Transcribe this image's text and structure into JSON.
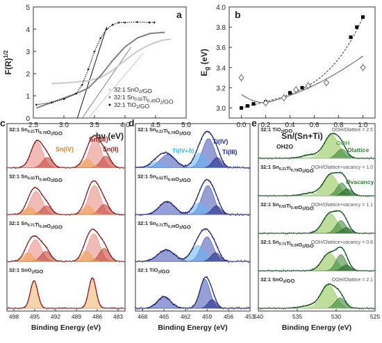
{
  "chart_data": [
    {
      "panel": "a",
      "type": "line",
      "xlabel": "hν (eV)",
      "ylabel": "F(R)1/2",
      "xlim": [
        2.5,
        5.0
      ],
      "ylim": [
        0,
        5
      ],
      "xticks": [
        "2.5",
        "3.0",
        "3.5",
        "4.0",
        "4.5",
        "5.0"
      ],
      "yticks": [
        "0",
        "1",
        "2",
        "3",
        "4",
        "5"
      ],
      "legend": [
        "32:1 SnO2/GO",
        "32:1 Sn0.55Ti0.45O2/GO",
        "32:1 TiO2/GO"
      ],
      "series": [
        {
          "name": "32:1 SnO2/GO",
          "color": "#c8c8c8",
          "x": [
            2.8,
            3.0,
            3.2,
            3.4,
            3.6,
            3.8,
            4.0,
            4.2,
            4.4,
            4.6,
            4.75
          ],
          "y": [
            1.55,
            1.58,
            1.62,
            1.68,
            1.82,
            2.15,
            2.6,
            3.0,
            3.3,
            3.5,
            3.55
          ]
        },
        {
          "name": "32:1 Sn0.55Ti0.45O2/GO",
          "color": "#808080",
          "x": [
            2.55,
            2.8,
            3.0,
            3.2,
            3.4,
            3.6,
            3.8,
            4.0,
            4.2,
            4.4,
            4.6,
            4.65
          ],
          "y": [
            0.45,
            0.7,
            0.9,
            1.1,
            1.35,
            1.9,
            2.6,
            3.2,
            3.6,
            3.8,
            3.85,
            3.85
          ]
        },
        {
          "name": "32:1 TiO2/GO",
          "color": "#111111",
          "x": [
            2.55,
            2.8,
            3.0,
            3.2,
            3.3,
            3.4,
            3.5,
            3.6,
            3.7,
            3.8,
            3.9,
            4.0,
            4.2,
            4.4,
            4.48
          ],
          "y": [
            0.6,
            0.7,
            0.85,
            1.1,
            1.5,
            2.2,
            3.0,
            3.6,
            4.0,
            4.2,
            4.3,
            4.3,
            4.32,
            4.3,
            4.3
          ]
        }
      ],
      "extrapolations": [
        {
          "name": "32:1 SnO2/GO",
          "x0": 3.4,
          "x1": 4.3,
          "color": "#c8c8c8"
        },
        {
          "name": "32:1 Sn0.55Ti0.45O2/GO",
          "x0": 3.3,
          "x1": 4.1,
          "color": "#808080"
        },
        {
          "name": "32:1 TiO2/GO",
          "x0": 3.22,
          "x1": 3.7,
          "color": "#111111"
        }
      ],
      "label": "a"
    },
    {
      "panel": "b",
      "type": "scatter",
      "xlabel": "Sn/(Sn+Ti)",
      "ylabel": "Eg (eV)",
      "xlim": [
        -0.1,
        1.1
      ],
      "ylim": [
        2.9,
        4.0
      ],
      "xticks": [
        "0.0",
        "0.2",
        "0.4",
        "0.6",
        "0.8",
        "1.0"
      ],
      "yticks": [
        "3.0",
        "3.2",
        "3.4",
        "3.6",
        "3.8",
        "4.0"
      ],
      "series": [
        {
          "name": "",
          "marker": "square-filled",
          "color": "#000000",
          "x": [
            0.0,
            0.05,
            0.1,
            0.2,
            0.4,
            0.5,
            0.9,
            0.95,
            1.0
          ],
          "y": [
            3.0,
            3.02,
            3.04,
            3.06,
            3.15,
            3.2,
            3.7,
            3.8,
            3.9
          ]
        },
        {
          "name": "",
          "marker": "diamond-open",
          "color": "#666666",
          "x": [
            0.0,
            0.2,
            0.35,
            0.45,
            0.55,
            0.7,
            1.0
          ],
          "y": [
            3.3,
            3.05,
            3.1,
            3.18,
            3.22,
            3.25,
            3.4
          ]
        }
      ],
      "label": "b"
    },
    {
      "panel": "c",
      "type": "area",
      "xlabel": "Binding Energy (eV)",
      "xlim": [
        499,
        482
      ],
      "xticks": [
        "498",
        "495",
        "492",
        "489",
        "486",
        "483"
      ],
      "spectra": [
        "32:1 Sn0.21Ti0.79O2/GO",
        "32:1 Sn0.55Ti0.45O2/GO",
        "32:1 Sn0.71Ti0.29O2/GO",
        "32:1 SnO2/GO"
      ],
      "annotations": [
        "Sn(III)",
        "Sn(IV)",
        "Sn(II)"
      ],
      "label": "c"
    },
    {
      "panel": "d",
      "type": "area",
      "xlabel": "Binding Energy (eV)",
      "xlim": [
        469,
        453
      ],
      "xticks": [
        "468",
        "465",
        "462",
        "459",
        "456",
        "453"
      ],
      "spectra": [
        "32:1 Sn0.21Ti0.79O2/GO",
        "32:1 Sn0.55Ti0.45O2/GO",
        "32:1 Sn0.71Ti0.29O2/GO",
        "32:1 TiO2/GO"
      ],
      "annotations": [
        "Ti(IV)",
        "Ti(IV+δ)",
        "Ti(III)"
      ],
      "label": "d"
    },
    {
      "panel": "e",
      "type": "area",
      "xlabel": "Binding Energy (eV)",
      "xlim": [
        540,
        525
      ],
      "xticks": [
        "540",
        "535",
        "530",
        "525"
      ],
      "spectra": [
        {
          "name": "32:1 TiO2/GO",
          "ratio_label": "OOH/Olattice = 2.5"
        },
        {
          "name": "32:1 Sn0.21Ti0.79O2/GO",
          "ratio_label": "OOH/Olattice+vacancy = 1.0"
        },
        {
          "name": "32:1 Sn0.55Ti0.45O2/GO",
          "ratio_label": "OOH/Olattice+vacancy = 1.1"
        },
        {
          "name": "32:1 Sn0.71Ti0.29O2/GO",
          "ratio_label": "OOH/Olattice+vacancy = 0.8"
        },
        {
          "name": "32:1 SnO2/GO",
          "ratio_label": "OOH/Olattice = 2.1"
        }
      ],
      "annotations": [
        "OH2O",
        "OOH",
        "Olattice",
        "Ovacancy"
      ],
      "label": "e"
    }
  ]
}
